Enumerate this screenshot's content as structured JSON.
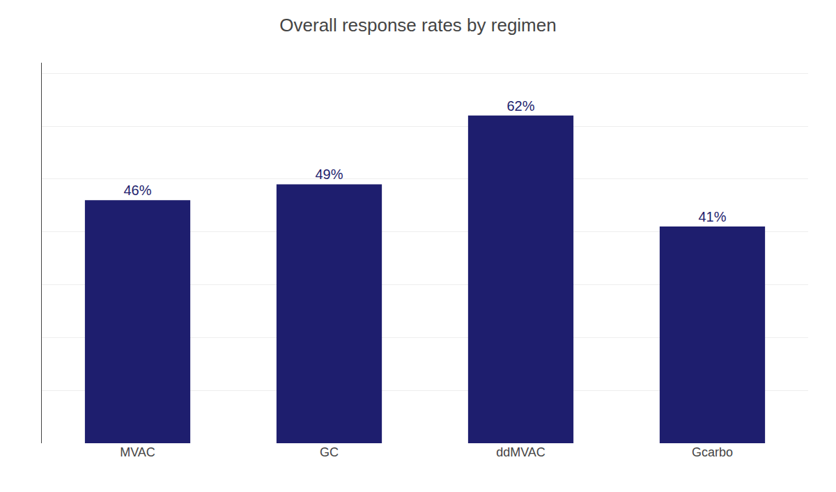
{
  "chart_data": {
    "type": "bar",
    "title": "Overall response rates by regimen",
    "categories": [
      "MVAC",
      "GC",
      "ddMVAC",
      "Gcarbo"
    ],
    "values": [
      46,
      49,
      62,
      41
    ],
    "value_labels": [
      "46%",
      "49%",
      "62%",
      "41%"
    ],
    "data_labels": true,
    "color": "#1e1e6e",
    "ylim": [
      0,
      72
    ],
    "yticks": [
      10,
      20,
      30,
      40,
      50,
      60,
      70
    ],
    "grid": true,
    "tick_labels": "x"
  }
}
